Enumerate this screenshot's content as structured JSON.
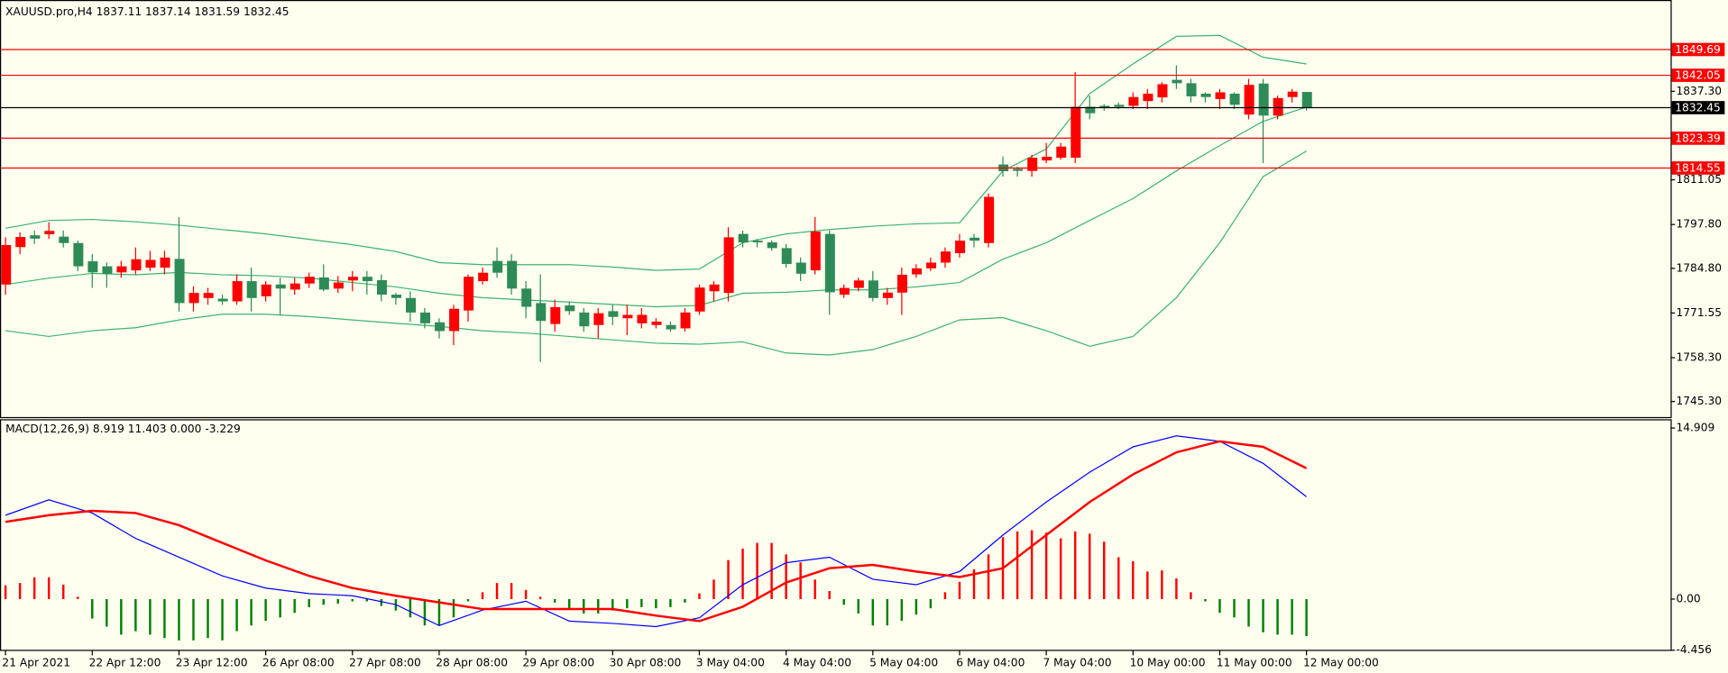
{
  "chart_data": [
    {
      "type": "candlestick",
      "title": "XAUUSD.pro,H4  1837.11 1837.14 1831.59 1832.45",
      "categories": [
        "21 Apr 2021",
        null,
        null,
        null,
        null,
        null,
        "22 Apr 12:00",
        null,
        null,
        null,
        null,
        null,
        "23 Apr 12:00",
        null,
        null,
        null,
        null,
        null,
        "26 Apr 08:00",
        null,
        null,
        null,
        null,
        null,
        "27 Apr 08:00",
        null,
        null,
        null,
        null,
        null,
        "28 Apr 08:00",
        null,
        null,
        null,
        null,
        null,
        "29 Apr 08:00",
        null,
        null,
        null,
        null,
        null,
        "30 Apr 08:00",
        null,
        null,
        null,
        null,
        null,
        "3 May 04:00",
        null,
        null,
        null,
        null,
        null,
        "4 May 04:00",
        null,
        null,
        null,
        null,
        null,
        "5 May 04:00",
        null,
        null,
        null,
        null,
        null,
        "6 May 04:00",
        null,
        null,
        null,
        null,
        null,
        "7 May 04:00",
        null,
        null,
        null,
        null,
        null,
        "10 May 00:00",
        null,
        null,
        null,
        null,
        null,
        "11 May 00:00",
        null,
        null,
        null,
        null,
        null,
        "12 May 00:00"
      ],
      "open": [
        1780.0,
        1791.1,
        1794.6,
        1794.9,
        1794.2,
        1792.3,
        1786.9,
        1785.4,
        1783.6,
        1784.2,
        1785.0,
        1785.0,
        1787.6,
        1774.5,
        1776.0,
        1775.8,
        1775.0,
        1781.0,
        1776.5,
        1780.0,
        1778.5,
        1780.3,
        1782.1,
        1778.8,
        1781.2,
        1782.3,
        1781.3,
        1777.0,
        1776.0,
        1771.7,
        1768.8,
        1766.2,
        1772.3,
        1781.0,
        1787.0,
        1787.0,
        1778.8,
        1774.5,
        1768.3,
        1773.8,
        1771.7,
        1768.0,
        1772.1,
        1770.0,
        1768.5,
        1768.0,
        1768.0,
        1767.0,
        1772.0,
        1778.0,
        1777.5,
        1795.0,
        1793.0,
        1792.5,
        1790.8,
        1786.5,
        1784.2,
        1795.0,
        1777.0,
        1779.0,
        1781.2,
        1776.0,
        1777.6,
        1783.0,
        1784.8,
        1786.5,
        1789.3,
        1793.9,
        1792.3,
        1815.6,
        1814.3,
        1813.7,
        1816.8,
        1817.6,
        1817.6,
        1832.7,
        1833.0,
        1833.3,
        1833.0,
        1834.4,
        1835.5,
        1840.7,
        1839.7,
        1836.6,
        1835.0,
        1836.6,
        1830.4,
        1839.6,
        1830.1,
        1835.6,
        1837.11
      ],
      "high": [
        1794.0,
        1795.5,
        1796.0,
        1798.5,
        1796.0,
        1793.0,
        1789.0,
        1786.5,
        1787.0,
        1791.0,
        1790.0,
        1790.0,
        1800.0,
        1779.5,
        1779.0,
        1777.0,
        1783.0,
        1785.0,
        1781.0,
        1782.0,
        1782.0,
        1783.5,
        1786.0,
        1782.5,
        1784.0,
        1784.0,
        1783.0,
        1777.5,
        1778.0,
        1773.0,
        1770.0,
        1774.0,
        1783.0,
        1785.0,
        1791.0,
        1789.0,
        1781.0,
        1783.0,
        1775.5,
        1775.0,
        1773.0,
        1773.0,
        1774.0,
        1774.0,
        1773.0,
        1770.0,
        1769.0,
        1773.0,
        1780.0,
        1781.0,
        1797.0,
        1796.0,
        1793.5,
        1793.0,
        1792.0,
        1788.0,
        1800.0,
        1796.0,
        1780.0,
        1782.0,
        1784.0,
        1779.0,
        1785.0,
        1786.0,
        1788.0,
        1791.0,
        1795.0,
        1795.0,
        1807.0,
        1818.0,
        1815.0,
        1818.5,
        1822.0,
        1822.0,
        1843.0,
        1836.0,
        1833.5,
        1834.0,
        1837.0,
        1838.0,
        1840.0,
        1845.0,
        1841.0,
        1837.0,
        1838.0,
        1837.0,
        1841.0,
        1841.0,
        1836.0,
        1838.0,
        1837.14
      ],
      "low": [
        1777.0,
        1789.0,
        1792.0,
        1793.5,
        1791.0,
        1784.0,
        1779.0,
        1779.0,
        1782.0,
        1783.0,
        1784.0,
        1783.0,
        1772.0,
        1772.0,
        1774.0,
        1774.0,
        1774.0,
        1772.0,
        1775.0,
        1771.0,
        1777.0,
        1779.0,
        1778.0,
        1777.5,
        1778.0,
        1777.0,
        1775.0,
        1774.0,
        1769.0,
        1767.0,
        1764.0,
        1762.0,
        1769.0,
        1780.0,
        1782.0,
        1777.0,
        1770.0,
        1757.0,
        1766.0,
        1771.0,
        1766.0,
        1764.0,
        1768.0,
        1765.0,
        1767.0,
        1767.0,
        1766.0,
        1766.0,
        1771.0,
        1775.0,
        1775.0,
        1791.0,
        1791.0,
        1790.0,
        1785.0,
        1781.0,
        1783.0,
        1771.0,
        1776.0,
        1778.0,
        1775.0,
        1774.0,
        1771.0,
        1782.0,
        1784.0,
        1785.0,
        1788.0,
        1791.0,
        1791.0,
        1812.0,
        1812.0,
        1812.0,
        1816.0,
        1817.0,
        1816.0,
        1829.0,
        1831.5,
        1832.0,
        1832.0,
        1832.0,
        1834.0,
        1838.0,
        1834.0,
        1834.0,
        1832.0,
        1832.0,
        1829.0,
        1816.0,
        1829.0,
        1834.0,
        1831.59
      ],
      "close": [
        1791.7,
        1794.1,
        1793.6,
        1795.9,
        1792.3,
        1785.4,
        1783.6,
        1783.2,
        1785.4,
        1787.5,
        1787.3,
        1788.0,
        1774.5,
        1777.5,
        1777.5,
        1775.0,
        1781.0,
        1776.0,
        1780.0,
        1778.8,
        1780.3,
        1782.3,
        1778.5,
        1780.6,
        1782.3,
        1781.0,
        1777.0,
        1776.0,
        1771.7,
        1768.5,
        1766.2,
        1772.8,
        1782.3,
        1783.5,
        1783.5,
        1778.8,
        1773.4,
        1769.2,
        1773.3,
        1772.1,
        1767.6,
        1771.5,
        1770.4,
        1771.0,
        1771.0,
        1769.0,
        1766.7,
        1771.7,
        1779.1,
        1780.0,
        1794.0,
        1792.5,
        1792.5,
        1790.8,
        1786.1,
        1783.2,
        1795.7,
        1777.7,
        1779.0,
        1781.2,
        1776.0,
        1777.6,
        1782.9,
        1784.8,
        1786.5,
        1789.8,
        1793.0,
        1793.0,
        1806.0,
        1813.6,
        1813.7,
        1817.6,
        1817.9,
        1820.9,
        1832.7,
        1830.8,
        1832.4,
        1832.7,
        1835.6,
        1836.6,
        1839.4,
        1839.7,
        1835.8,
        1835.6,
        1837.0,
        1833.3,
        1839.2,
        1830.1,
        1835.3,
        1837.2,
        1832.45
      ],
      "up_color": "#ff0000",
      "down_color": "#2e8b57",
      "bands": {
        "color": "#3cb371",
        "x": [
          0,
          3,
          6,
          9,
          12,
          15,
          18,
          21,
          24,
          27,
          30,
          33,
          36,
          39,
          42,
          45,
          48,
          51,
          54,
          57,
          60,
          63,
          66,
          69,
          72,
          75,
          78,
          81,
          84,
          87,
          90
        ],
        "upper": [
          1796.7,
          1799.0,
          1799.3,
          1798.6,
          1797.6,
          1796.3,
          1795.0,
          1793.4,
          1791.8,
          1789.8,
          1786.5,
          1785.9,
          1785.9,
          1785.9,
          1785.2,
          1784.2,
          1784.6,
          1792.4,
          1795.0,
          1796.3,
          1797.3,
          1798.0,
          1798.3,
          1813.7,
          1820.2,
          1836.6,
          1845.4,
          1853.6,
          1853.9,
          1847.4,
          1845.4
        ],
        "middle": [
          1780.0,
          1781.9,
          1783.3,
          1782.9,
          1783.6,
          1782.9,
          1782.6,
          1781.9,
          1780.6,
          1779.3,
          1777.4,
          1776.1,
          1775.4,
          1774.8,
          1774.1,
          1773.4,
          1773.8,
          1777.4,
          1777.7,
          1778.4,
          1778.4,
          1779.3,
          1780.6,
          1787.5,
          1792.4,
          1799.0,
          1805.5,
          1813.7,
          1821.2,
          1828.4,
          1832.6
        ],
        "lower": [
          1766.3,
          1764.6,
          1766.3,
          1767.2,
          1769.5,
          1771.2,
          1771.2,
          1770.5,
          1769.5,
          1768.5,
          1767.6,
          1766.3,
          1765.6,
          1764.6,
          1763.6,
          1762.6,
          1762.3,
          1763.0,
          1759.7,
          1759.1,
          1760.7,
          1764.6,
          1769.5,
          1770.2,
          1766.3,
          1761.7,
          1764.6,
          1776.1,
          1792.4,
          1812.0,
          1819.6
        ]
      },
      "levels": [
        {
          "value": 1849.69,
          "color": "#ff0000"
        },
        {
          "value": 1842.05,
          "color": "#ff0000"
        },
        {
          "value": 1832.45,
          "color": "#000000"
        },
        {
          "value": 1823.39,
          "color": "#ff0000"
        },
        {
          "value": 1814.55,
          "color": "#ff0000"
        }
      ],
      "ylim": [
        1740.7,
        1864.05
      ],
      "yticks": [
        {
          "value": 1837.3,
          "label": "1837.30"
        },
        {
          "value": 1811.05,
          "label": "1811.05"
        },
        {
          "value": 1797.8,
          "label": "1797.80"
        },
        {
          "value": 1784.8,
          "label": "1784.80"
        },
        {
          "value": 1771.55,
          "label": "1771.55"
        },
        {
          "value": 1758.3,
          "label": "1758.30"
        },
        {
          "value": 1745.3,
          "label": "1745.30"
        }
      ]
    },
    {
      "type": "macd",
      "title": "MACD(12,26,9) 8.919 11.403 0.000 -3.229",
      "histogram": {
        "up_color": "#ff0000",
        "down_color": "#008000",
        "values": [
          1.2,
          1.4,
          1.9,
          1.9,
          1.25,
          0.2,
          -1.7,
          -2.4,
          -3.1,
          -2.8,
          -3.1,
          -3.4,
          -3.6,
          -3.6,
          -3.4,
          -3.6,
          -2.8,
          -2.3,
          -1.9,
          -1.6,
          -1.2,
          -0.7,
          -0.5,
          -0.4,
          -0.2,
          -0.2,
          -0.6,
          -1.0,
          -1.6,
          -2.3,
          -2.3,
          -1.6,
          -0.2,
          0.6,
          1.4,
          1.4,
          0.8,
          0.2,
          -0.3,
          -0.9,
          -1.25,
          -1.25,
          -1.0,
          -0.8,
          -0.7,
          -0.8,
          -0.7,
          -0.3,
          0.5,
          1.7,
          3.4,
          4.4,
          4.9,
          4.9,
          3.9,
          3.2,
          1.7,
          0.7,
          -0.5,
          -1.25,
          -2.3,
          -2.3,
          -1.9,
          -1.35,
          -0.8,
          0.6,
          1.5,
          2.6,
          3.9,
          5.4,
          5.9,
          6.0,
          5.8,
          5.3,
          5.9,
          5.7,
          5.0,
          3.65,
          3.3,
          2.4,
          2.5,
          1.8,
          0.6,
          -0.2,
          -1.2,
          -1.6,
          -2.4,
          -2.9,
          -3.1,
          -3.1,
          -3.229
        ]
      },
      "series": [
        {
          "color": "#0000ff",
          "x": [
            0,
            3,
            6,
            9,
            12,
            15,
            18,
            21,
            24,
            27,
            30,
            33,
            36,
            39,
            42,
            45,
            48,
            51,
            54,
            57,
            60,
            63,
            66,
            69,
            72,
            75,
            78,
            81,
            84,
            87,
            90
          ],
          "values": [
            7.31,
            8.65,
            7.5,
            5.29,
            3.65,
            2.02,
            0.96,
            0.48,
            0.29,
            -0.48,
            -2.31,
            -0.96,
            -0.19,
            -1.92,
            -2.12,
            -2.4,
            -1.63,
            1.25,
            3.17,
            3.65,
            1.73,
            1.25,
            2.4,
            5.58,
            8.46,
            11.06,
            13.27,
            14.23,
            13.75,
            11.83,
            8.919
          ]
        },
        {
          "color": "#ff0000",
          "x": [
            0,
            3,
            6,
            9,
            12,
            15,
            18,
            21,
            24,
            27,
            30,
            33,
            36,
            39,
            42,
            45,
            48,
            51,
            54,
            57,
            60,
            63,
            66,
            69,
            72,
            75,
            78,
            81,
            84,
            87,
            90
          ],
          "values": [
            6.73,
            7.31,
            7.69,
            7.5,
            6.44,
            4.9,
            3.37,
            2.02,
            0.96,
            0.29,
            -0.29,
            -0.87,
            -0.87,
            -0.87,
            -0.87,
            -1.44,
            -1.92,
            -0.67,
            1.44,
            2.69,
            2.98,
            2.4,
            1.92,
            2.69,
            5.58,
            8.46,
            10.87,
            12.79,
            13.75,
            13.27,
            11.403
          ]
        }
      ],
      "ylim": [
        -4.52,
        15.58
      ],
      "yticks": [
        14.909,
        {
          "value": 0,
          "label": "0.00"
        },
        -4.456
      ]
    }
  ]
}
